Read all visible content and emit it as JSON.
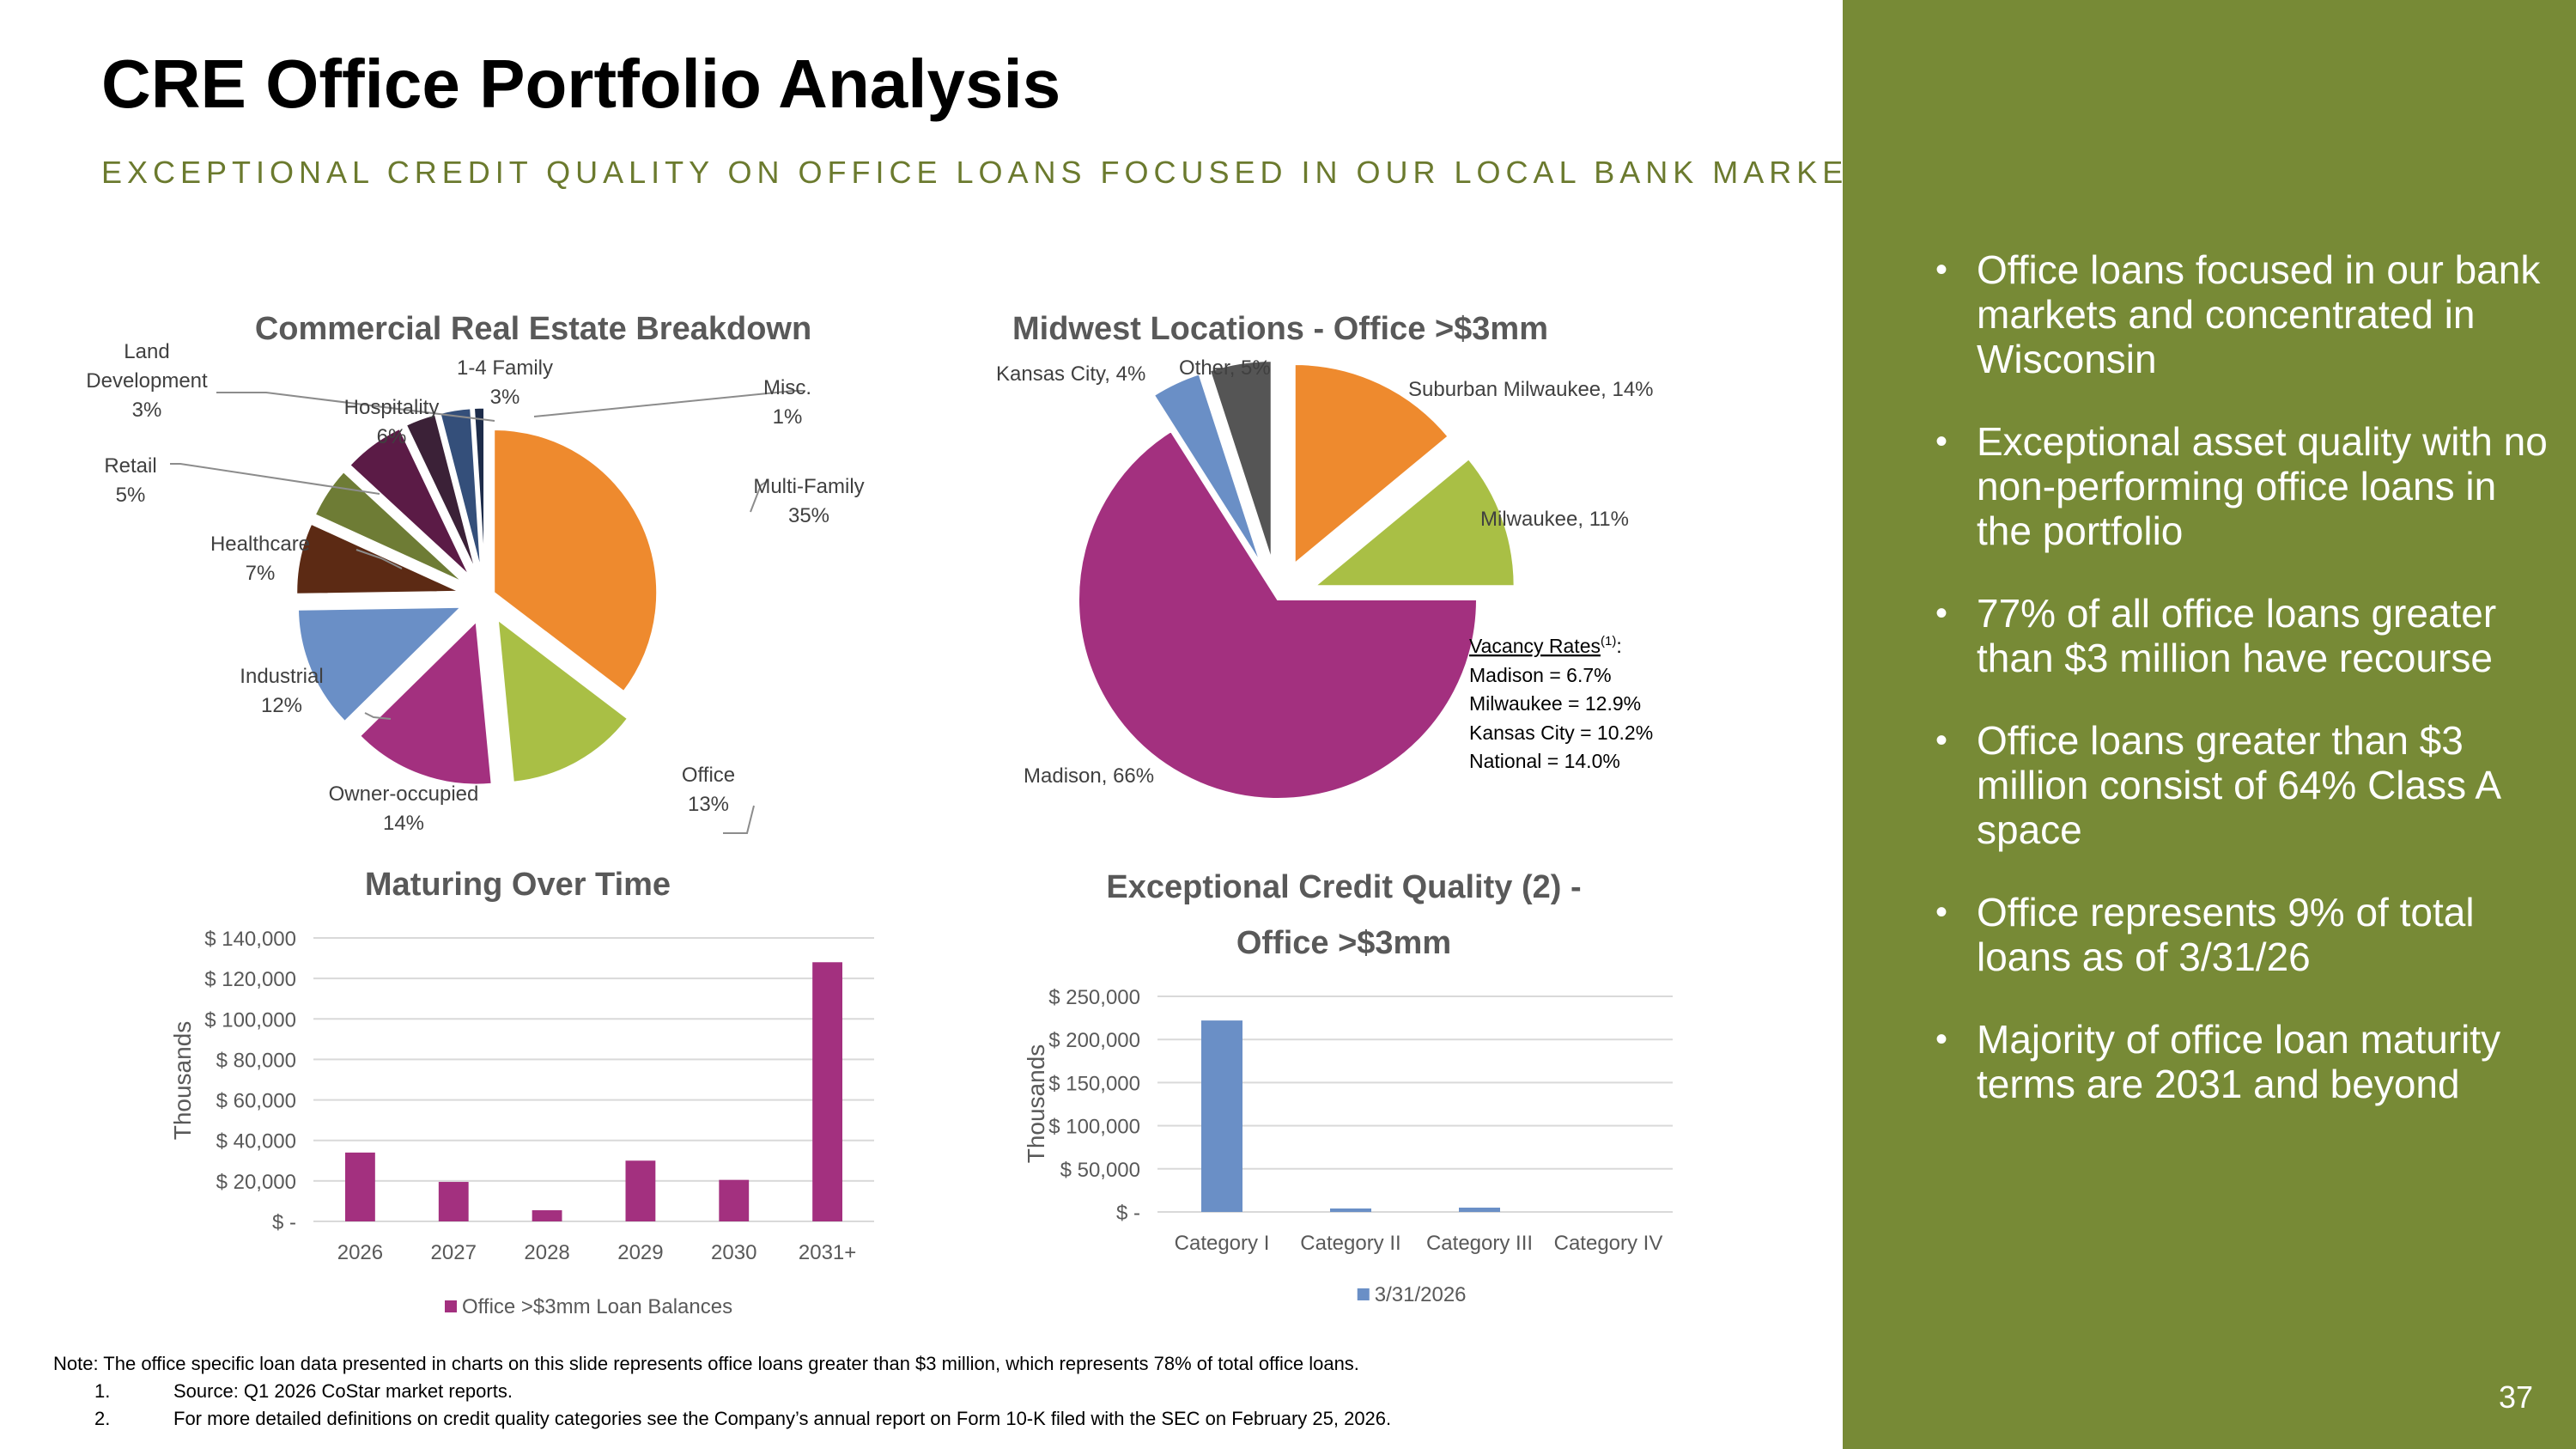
{
  "header": {
    "title": "CRE Office Portfolio Analysis",
    "subtitle": "EXCEPTIONAL CREDIT QUALITY ON OFFICE LOANS FOCUSED IN OUR LOCAL BANK MARKETS"
  },
  "sidebar": {
    "bullets": [
      "Office loans focused in our bank markets and concentrated in Wisconsin",
      "Exceptional asset quality with no non-performing office loans in the portfolio",
      "77% of all office loans greater than $3 million have recourse",
      "Office loans greater than $3 million consist of 64% Class A space",
      "Office represents 9% of total loans as of 3/31/26",
      "Majority of office loan maturity terms are 2031 and beyond"
    ],
    "page_number": "37"
  },
  "colors": {
    "accent_green": "#778a36",
    "subtitle_green": "#6b7a2e",
    "bar_purple": "#a3307f",
    "bar_blue": "#6a8fc6"
  },
  "vacancy": {
    "heading": "Vacancy Rates",
    "superscript": "(1)",
    "suffix": ":",
    "lines": [
      "Madison = 6.7%",
      "Milwaukee = 12.9%",
      "Kansas City = 10.2%",
      "National = 14.0%"
    ]
  },
  "footnotes": {
    "note": "Note: The office specific loan data presented in charts on this slide represents office loans greater than $3 million, which represents 78% of total office loans.",
    "items": [
      {
        "num": "1.",
        "text": "Source: Q1 2026 CoStar market reports."
      },
      {
        "num": "2.",
        "text": "For more detailed definitions on credit quality categories see the Company’s annual report on Form  10-K filed with the SEC on February 25, 2026."
      }
    ]
  },
  "chart_data": [
    {
      "type": "pie",
      "title": "Commercial Real Estate Breakdown",
      "slices": [
        {
          "label": "Multi-Family",
          "pct_label": "35%",
          "value": 35,
          "color": "#ee8a2e",
          "explode": 0.06
        },
        {
          "label": "Office",
          "pct_label": "13%",
          "value": 13,
          "color": "#a9bf45",
          "explode": 0.16
        },
        {
          "label": "Owner-occupied",
          "pct_label": "14%",
          "value": 14,
          "color": "#a3307f",
          "explode": 0.16
        },
        {
          "label": "Industrial",
          "pct_label": "12%",
          "value": 12,
          "color": "#6a8fc6",
          "explode": 0.16
        },
        {
          "label": "Healthcare",
          "pct_label": "7%",
          "value": 7,
          "color": "#5c2a14",
          "explode": 0.16
        },
        {
          "label": "Retail",
          "pct_label": "5%",
          "value": 5,
          "color": "#6e7c35",
          "explode": 0.16
        },
        {
          "label": "Hospitality",
          "pct_label": "6%",
          "value": 6,
          "color": "#5b1b46",
          "explode": 0.16
        },
        {
          "label": "Land Development",
          "pct_label": "3%",
          "value": 3,
          "color": "#3b2137",
          "explode": 0.16
        },
        {
          "label": "1-4 Family",
          "pct_label": "3%",
          "value": 3,
          "color": "#344f7a",
          "explode": 0.16
        },
        {
          "label": "Misc.",
          "pct_label": "1%",
          "value": 1,
          "color": "#1d2c4a",
          "explode": 0.16
        }
      ]
    },
    {
      "type": "pie",
      "title": "Midwest Locations - Office >$3mm",
      "slices": [
        {
          "label": "Suburban Milwaukee",
          "pct_label": "14%",
          "value": 14,
          "color": "#ee8a2e",
          "explode": 0.2
        },
        {
          "label": "Milwaukee",
          "pct_label": "11%",
          "value": 11,
          "color": "#a9bf45",
          "explode": 0.2
        },
        {
          "label": "Madison",
          "pct_label": "66%",
          "value": 66,
          "color": "#a3307f",
          "explode": 0.0
        },
        {
          "label": "Kansas City",
          "pct_label": "4%",
          "value": 4,
          "color": "#6a8fc6",
          "explode": 0.2
        },
        {
          "label": "Other",
          "pct_label": "5%",
          "value": 5,
          "color": "#555555",
          "explode": 0.2
        }
      ]
    },
    {
      "type": "bar",
      "title": "Maturing Over Time",
      "categories": [
        "2026",
        "2027",
        "2028",
        "2029",
        "2030",
        "2031+"
      ],
      "series": [
        {
          "name": "Office >$3mm Loan Balances",
          "values": [
            34000,
            19500,
            5500,
            30000,
            20500,
            128000
          ]
        }
      ],
      "ylabel": "Thousands",
      "ylim": [
        0,
        140000
      ],
      "yticks": [
        0,
        20000,
        40000,
        60000,
        80000,
        100000,
        120000,
        140000
      ],
      "ytick_labels": [
        "$ -",
        "$ 20,000",
        "$ 40,000",
        "$ 60,000",
        "$ 80,000",
        "$ 100,000",
        "$ 120,000",
        "$ 140,000"
      ],
      "grid": true,
      "legend": "bottom"
    },
    {
      "type": "bar",
      "title": "Exceptional Credit Quality (2) - Office >$3mm",
      "title_lines": [
        "Exceptional Credit Quality (2) -",
        "Office >$3mm"
      ],
      "categories": [
        "Category I",
        "Category II",
        "Category III",
        "Category IV"
      ],
      "series": [
        {
          "name": "3/31/2026",
          "values": [
            222000,
            4000,
            5000,
            0
          ]
        }
      ],
      "ylabel": "Thousands",
      "ylim": [
        0,
        250000
      ],
      "yticks": [
        0,
        50000,
        100000,
        150000,
        200000,
        250000
      ],
      "ytick_labels": [
        "$ -",
        "$ 50,000",
        "$ 100,000",
        "$ 150,000",
        "$ 200,000",
        "$ 250,000"
      ],
      "grid": true,
      "legend": "bottom"
    }
  ]
}
